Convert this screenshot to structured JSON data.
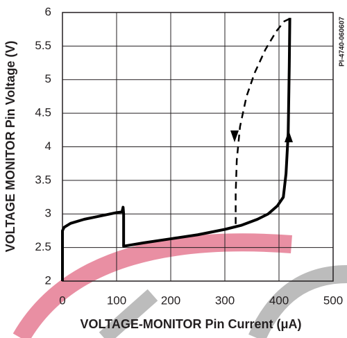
{
  "chart_data": {
    "type": "line",
    "ylabel": "VOLTAGE MONITOR Pin Voltage (V)",
    "xlabel": "VOLTAGE-MONITOR Pin Current (μA)",
    "annotation": "PI-4740-060607",
    "xlim": [
      0,
      500
    ],
    "xticks": [
      0,
      100,
      200,
      300,
      400,
      500
    ],
    "ylim": [
      2,
      6
    ],
    "yticks": [
      2,
      2.5,
      3,
      3.5,
      4,
      4.5,
      5,
      5.5,
      6
    ],
    "grid": true,
    "series": [
      {
        "color": "#000000",
        "line_style": "solid",
        "x": [
          0,
          0,
          3,
          15,
          40,
          70,
          100,
          110,
          112,
          113,
          113,
          150,
          200,
          250,
          300,
          330,
          360,
          380,
          397,
          408,
          413,
          417,
          419,
          420
        ],
        "values": [
          2.0,
          2.75,
          2.8,
          2.86,
          2.92,
          2.97,
          3.02,
          3.03,
          3.1,
          3.0,
          2.52,
          2.57,
          2.63,
          2.69,
          2.77,
          2.83,
          2.92,
          3.0,
          3.12,
          3.25,
          3.6,
          4.2,
          5.2,
          5.92
        ]
      },
      {
        "color": "#000000",
        "line_style": "dashed",
        "x": [
          320,
          320,
          322,
          328,
          340,
          355,
          375,
          395,
          410,
          418
        ],
        "values": [
          2.85,
          3.3,
          3.8,
          4.3,
          4.75,
          5.1,
          5.45,
          5.72,
          5.87,
          5.9
        ]
      }
    ]
  }
}
